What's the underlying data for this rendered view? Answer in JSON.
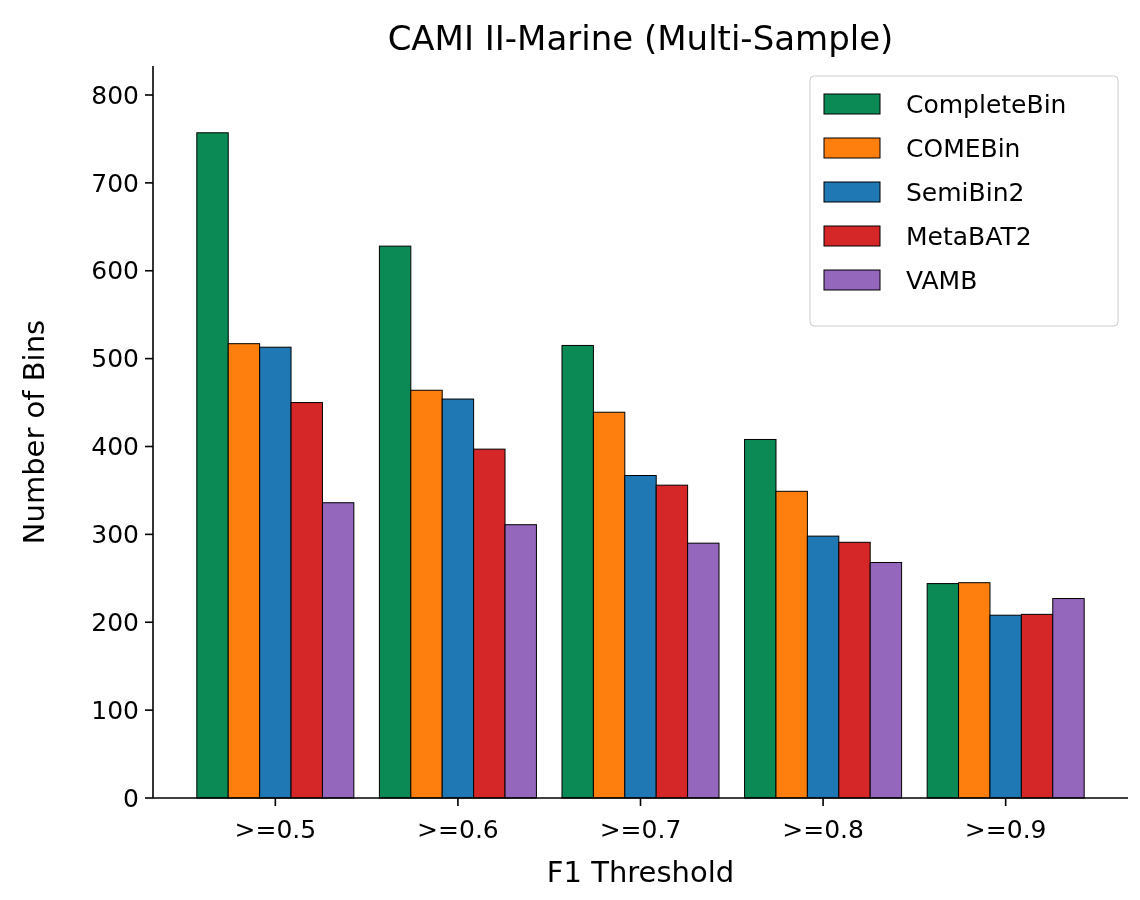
{
  "chart_data": {
    "type": "bar",
    "title": "CAMI II-Marine (Multi-Sample)",
    "xlabel": "F1 Threshold",
    "ylabel": "Number of Bins",
    "categories": [
      ">=0.5",
      ">=0.6",
      ">=0.7",
      ">=0.8",
      ">=0.9"
    ],
    "series": [
      {
        "name": "CompleteBin",
        "color": "#0b8a56",
        "values": [
          757,
          628,
          515,
          408,
          244
        ]
      },
      {
        "name": "COMEBin",
        "color": "#ff7f0e",
        "values": [
          517,
          464,
          439,
          349,
          245
        ]
      },
      {
        "name": "SemiBin2",
        "color": "#1f77b4",
        "values": [
          513,
          454,
          367,
          298,
          208
        ]
      },
      {
        "name": "MetaBAT2",
        "color": "#d62728",
        "values": [
          450,
          397,
          356,
          291,
          209
        ]
      },
      {
        "name": "VAMB",
        "color": "#9467bd",
        "values": [
          336,
          311,
          290,
          268,
          227
        ]
      }
    ],
    "ylim": [
      0,
      833
    ],
    "yticks": [
      0,
      100,
      200,
      300,
      400,
      500,
      600,
      700,
      800
    ],
    "legend": "top right",
    "grid": false
  }
}
